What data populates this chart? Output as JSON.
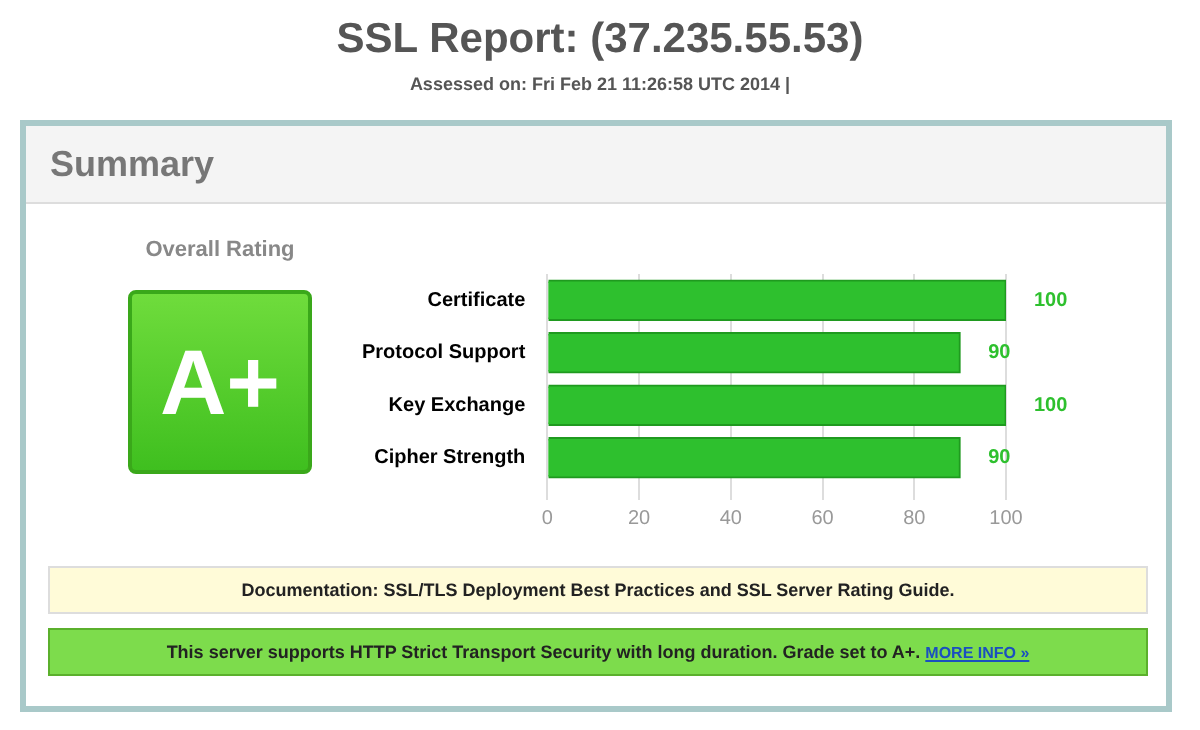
{
  "chart_data": {
    "type": "bar",
    "orientation": "horizontal",
    "title": "SSL Report: (37.235.55.53)",
    "subtitle": "Assessed on:  Fri Feb 21 11:26:58 UTC 2014 |",
    "categories": [
      "Certificate",
      "Protocol Support",
      "Key Exchange",
      "Cipher Strength"
    ],
    "values": [
      100,
      90,
      100,
      90
    ],
    "color": "#2ec02e",
    "xlim": [
      0,
      100
    ],
    "xticks": [
      0,
      20,
      40,
      60,
      80,
      100
    ],
    "grid": "x",
    "data_labels": true,
    "annotations": [
      "Summary",
      "Overall Rating",
      "A+",
      "Documentation: SSL/TLS Deployment Best Practices and SSL Server Rating Guide.",
      "This server supports HTTP Strict Transport Security with long duration. Grade set to A+.",
      "MORE INFO »"
    ]
  }
}
